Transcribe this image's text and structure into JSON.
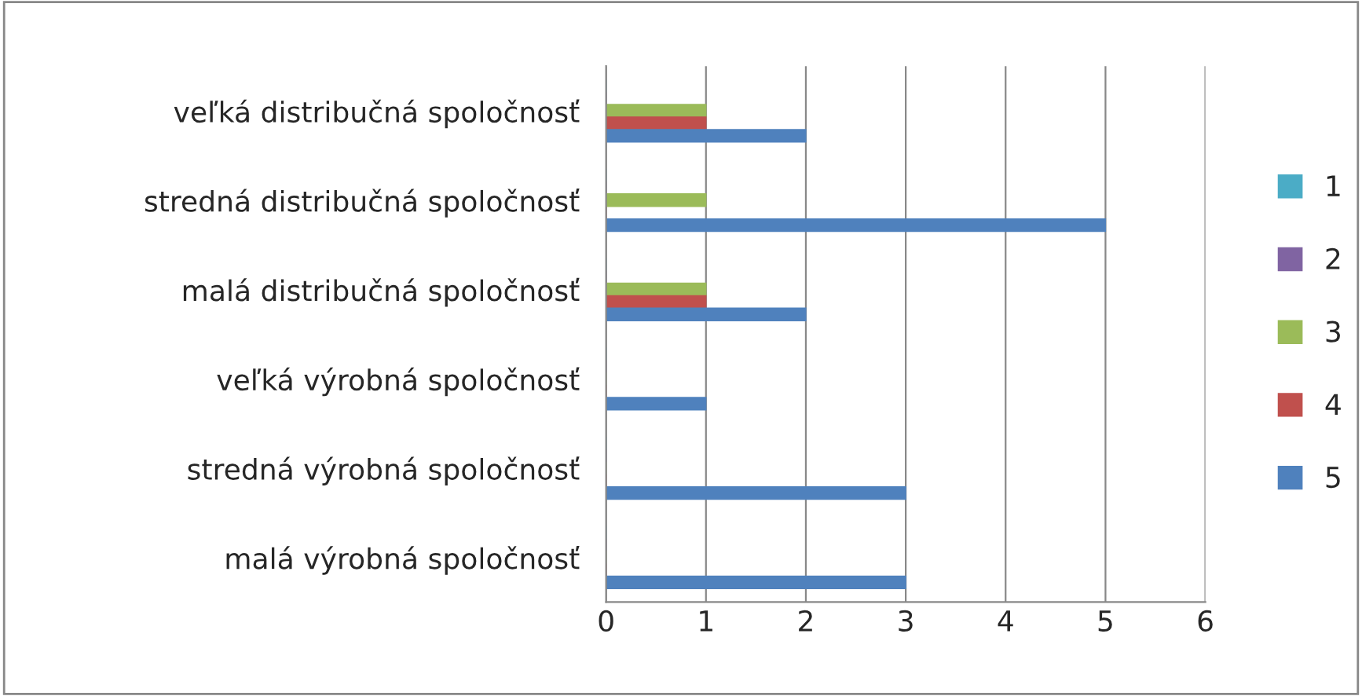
{
  "chart_data": {
    "type": "bar",
    "orientation": "horizontal",
    "categories": [
      "veľká distribučná spoločnosť",
      "stredná distribučná spoločnosť",
      "malá distribučná spoločnosť",
      "veľká výrobná spoločnosť",
      "stredná výrobná spoločnosť",
      "malá výrobná spoločnosť"
    ],
    "series": [
      {
        "name": "1",
        "color": "#4bacc6",
        "values": [
          0,
          0,
          0,
          0,
          0,
          0
        ]
      },
      {
        "name": "2",
        "color": "#8064a2",
        "values": [
          0,
          0,
          0,
          0,
          0,
          0
        ]
      },
      {
        "name": "3",
        "color": "#9bbb59",
        "values": [
          1,
          1,
          1,
          0,
          0,
          0
        ]
      },
      {
        "name": "4",
        "color": "#c0504d",
        "values": [
          1,
          0,
          1,
          0,
          0,
          0
        ]
      },
      {
        "name": "5",
        "color": "#4f81bd",
        "values": [
          2,
          5,
          2,
          1,
          3,
          3
        ]
      }
    ],
    "xlim": [
      0,
      6
    ],
    "xticks": [
      0,
      1,
      2,
      3,
      4,
      5,
      6
    ],
    "grid": "x",
    "legend": "right"
  }
}
